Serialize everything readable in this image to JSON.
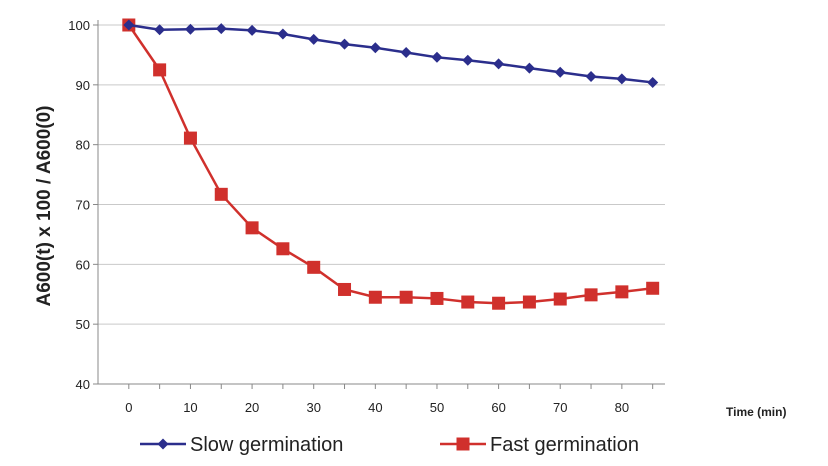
{
  "chart_data": {
    "type": "line",
    "title": "",
    "xlabel": "Time (min)",
    "ylabel": "A600(t) x 100 / A600(0)",
    "xlim": [
      -5,
      87
    ],
    "ylim": [
      40,
      100
    ],
    "xticks": [
      "0",
      "10",
      "20",
      "30",
      "40",
      "50",
      "60",
      "70",
      "80"
    ],
    "yticks": [
      "40",
      "50",
      "60",
      "70",
      "80",
      "90",
      "100"
    ],
    "grid": true,
    "legend_position": "bottom",
    "series": [
      {
        "name": "Slow germination",
        "color": "#2b2e8c",
        "marker": "diamond",
        "x": [
          0,
          5,
          10,
          15,
          20,
          25,
          30,
          35,
          40,
          45,
          50,
          55,
          60,
          65,
          70,
          75,
          80,
          85
        ],
        "y": [
          100,
          99.2,
          99.3,
          99.4,
          99.1,
          98.5,
          97.6,
          96.8,
          96.2,
          95.4,
          94.6,
          94.1,
          93.5,
          92.8,
          92.1,
          91.4,
          91.0,
          90.4
        ]
      },
      {
        "name": "Fast germination",
        "color": "#d0302c",
        "marker": "square",
        "x": [
          0,
          5,
          10,
          15,
          20,
          25,
          30,
          35,
          40,
          45,
          50,
          55,
          60,
          65,
          70,
          75,
          80,
          85
        ],
        "y": [
          100,
          92.5,
          81.1,
          71.7,
          66.1,
          62.6,
          59.5,
          55.8,
          54.5,
          54.5,
          54.3,
          53.7,
          53.5,
          53.7,
          54.2,
          54.9,
          55.4,
          56.0
        ]
      }
    ]
  }
}
